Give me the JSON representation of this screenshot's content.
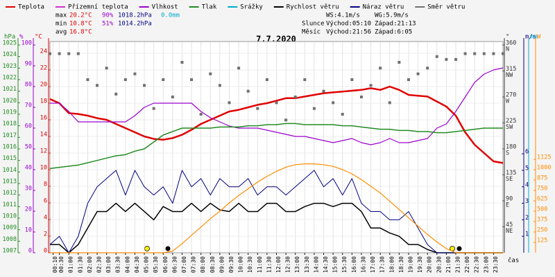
{
  "chart_data": {
    "type": "line",
    "title": "7.7.2020",
    "x_label": "čas",
    "x": [
      0,
      0.5,
      1,
      1.5,
      2,
      2.5,
      3,
      3.5,
      4,
      4.5,
      5,
      5.5,
      6,
      6.5,
      7,
      7.5,
      8,
      8.5,
      9,
      9.5,
      10,
      10.5,
      11,
      11.5,
      12,
      12.5,
      13,
      13.5,
      14,
      14.5,
      15,
      15.5,
      16,
      16.5,
      17,
      17.5,
      18,
      18.5,
      19,
      19.5,
      20,
      20.5,
      21,
      21.5,
      22,
      22.5,
      23,
      23.5,
      24
    ],
    "xlim": [
      0,
      24
    ],
    "xticks": [
      {
        "value": 0.1667,
        "label": "00:10"
      },
      {
        "value": 0.5,
        "label": "00:30"
      },
      {
        "value": 1,
        "label": "01:00"
      },
      {
        "value": 1.5,
        "label": "01:30"
      },
      {
        "value": 2,
        "label": "02:00"
      },
      {
        "value": 2.5,
        "label": "02:30"
      },
      {
        "value": 3,
        "label": "03:00"
      },
      {
        "value": 3.5,
        "label": "03:30"
      },
      {
        "value": 4,
        "label": "04:00"
      },
      {
        "value": 4.5,
        "label": "04:30"
      },
      {
        "value": 5,
        "label": "05:00"
      },
      {
        "value": 5.5,
        "label": "05:30"
      },
      {
        "value": 6,
        "label": "06:00"
      },
      {
        "value": 6.5,
        "label": "06:30"
      },
      {
        "value": 7,
        "label": "07:00"
      },
      {
        "value": 7.5,
        "label": "07:30"
      },
      {
        "value": 8,
        "label": "08:00"
      },
      {
        "value": 8.5,
        "label": "08:30"
      },
      {
        "value": 9,
        "label": "09:00"
      },
      {
        "value": 9.5,
        "label": "09:30"
      },
      {
        "value": 10,
        "label": "10:00"
      },
      {
        "value": 10.5,
        "label": "10:30"
      },
      {
        "value": 11,
        "label": "11:00"
      },
      {
        "value": 11.5,
        "label": "11:30"
      },
      {
        "value": 12,
        "label": "12:00"
      },
      {
        "value": 12.5,
        "label": "12:30"
      },
      {
        "value": 13,
        "label": "13:00"
      },
      {
        "value": 13.5,
        "label": "13:30"
      },
      {
        "value": 14,
        "label": "14:00"
      },
      {
        "value": 14.5,
        "label": "14:30"
      },
      {
        "value": 15,
        "label": "15:00"
      },
      {
        "value": 15.5,
        "label": "15:30"
      },
      {
        "value": 16,
        "label": "16:00"
      },
      {
        "value": 16.5,
        "label": "16:30"
      },
      {
        "value": 17,
        "label": "17:00"
      },
      {
        "value": 17.5,
        "label": "17:30"
      },
      {
        "value": 18,
        "label": "18:00"
      },
      {
        "value": 18.5,
        "label": "18:30"
      },
      {
        "value": 19,
        "label": "19:00"
      },
      {
        "value": 19.5,
        "label": "19:30"
      },
      {
        "value": 20,
        "label": "20:00"
      },
      {
        "value": 20.5,
        "label": "20:30"
      },
      {
        "value": 21,
        "label": "21:00"
      },
      {
        "value": 21.5,
        "label": "21:30"
      },
      {
        "value": 22,
        "label": "22:00"
      },
      {
        "value": 22.5,
        "label": "22:30"
      },
      {
        "value": 23,
        "label": "23:00"
      },
      {
        "value": 23.5,
        "label": "23:30"
      }
    ],
    "grid": true,
    "axes": {
      "press": {
        "label": "hPa",
        "color": "#228b22",
        "side": "left",
        "pos": 0,
        "lim": [
          1007,
          1025
        ],
        "ticks": [
          1007,
          1008,
          1009,
          1010,
          1011,
          1012,
          1013,
          1014,
          1015,
          1016,
          1017,
          1018,
          1019,
          1020,
          1021,
          1022,
          1023,
          1024,
          1025
        ]
      },
      "hum": {
        "label": "%",
        "color": "#9900cc",
        "side": "left",
        "pos": 1,
        "lim": [
          0,
          100
        ],
        "ticks": [
          0,
          10,
          20,
          30,
          40,
          50,
          60,
          70,
          80,
          90,
          100
        ]
      },
      "temp": {
        "label": "°C",
        "color": "#e00000",
        "side": "left",
        "pos": 2,
        "lim": [
          0,
          25
        ],
        "ticks": [
          0,
          2,
          4,
          6,
          8,
          10,
          12,
          14,
          16,
          18,
          20,
          22,
          24
        ]
      },
      "dir": {
        "label": "°",
        "color": "#333333",
        "side": "right",
        "pos": 0,
        "lim": [
          0,
          360
        ],
        "ticks": [
          45,
          90,
          135,
          180,
          225,
          270,
          315,
          360
        ],
        "compass": [
          "NE",
          "E",
          "SE",
          "S",
          "SW",
          "W",
          "NW",
          "N"
        ]
      },
      "wind": {
        "label": "m/s",
        "color": "#000080",
        "side": "right",
        "pos": 1,
        "lim": [
          0,
          12.6
        ],
        "ticks": [
          1,
          2,
          3,
          4,
          5,
          6
        ]
      },
      "rain": {
        "label": "mm",
        "color": "#00aacc",
        "side": "right",
        "pos": 2,
        "lim": [
          0,
          1
        ],
        "ticks": []
      },
      "solar": {
        "label": "W",
        "color": "#ff8c00",
        "side": "right",
        "pos": 3,
        "lim": [
          0,
          2500
        ],
        "ticks": [
          125,
          250,
          375,
          500,
          625,
          750,
          875,
          1000,
          1125
        ]
      }
    },
    "series": [
      {
        "name": "Teplota",
        "color": "#e00000",
        "axis": "temp",
        "width": 2.5,
        "values": [
          18.5,
          18,
          16.8,
          16.7,
          16.5,
          16.2,
          16,
          15.5,
          15,
          14.5,
          14,
          13.7,
          13.6,
          13.8,
          14.2,
          14.8,
          15.5,
          16,
          16.5,
          17,
          17.2,
          17.5,
          17.8,
          18,
          18.3,
          18.6,
          18.6,
          18.8,
          19,
          19.2,
          19.3,
          19.4,
          19.5,
          19.6,
          19.8,
          19.6,
          20,
          19.6,
          19,
          18.9,
          18.8,
          18.2,
          17.6,
          16.5,
          14.5,
          13,
          12,
          11,
          10.8
        ]
      },
      {
        "name": "Přízemní teplota",
        "color": "#cc33cc"
      },
      {
        "name": "Vlhkost",
        "color": "#9900cc",
        "axis": "hum",
        "width": 1.2,
        "values": [
          72,
          72,
          68,
          63,
          63,
          63,
          63,
          63,
          63,
          66,
          70,
          72,
          72,
          72,
          72,
          72,
          68,
          65,
          63,
          61,
          60,
          60,
          60,
          59,
          58,
          57,
          56,
          56,
          55,
          54,
          53,
          54,
          55,
          53,
          52,
          53,
          55,
          53,
          53,
          54,
          55,
          60,
          62,
          68,
          75,
          82,
          86,
          88,
          89
        ]
      },
      {
        "name": "Tlak",
        "color": "#228b22",
        "axis": "press",
        "width": 1.5,
        "values": [
          1014.3,
          1014.4,
          1014.5,
          1014.6,
          1014.8,
          1015,
          1015.2,
          1015.4,
          1015.5,
          1015.8,
          1016,
          1016.6,
          1017.2,
          1017.5,
          1017.8,
          1017.8,
          1017.8,
          1017.8,
          1017.9,
          1017.9,
          1017.9,
          1018,
          1018,
          1018.1,
          1018.1,
          1018.2,
          1018.2,
          1018.1,
          1018.1,
          1018.1,
          1018.1,
          1018,
          1018,
          1017.9,
          1017.8,
          1017.7,
          1017.7,
          1017.6,
          1017.6,
          1017.5,
          1017.5,
          1017.4,
          1017.4,
          1017.5,
          1017.6,
          1017.7,
          1017.8,
          1017.8,
          1017.8
        ]
      },
      {
        "name": "Srážky",
        "color": "#00aacc"
      },
      {
        "name": "Rychlost větru",
        "color": "#000000",
        "axis": "wind",
        "width": 1.5,
        "values": [
          0.5,
          0.5,
          0,
          0.5,
          1.5,
          2.5,
          2.5,
          3,
          2.5,
          3,
          2.5,
          2,
          2.8,
          2.5,
          2.5,
          3,
          2.5,
          3,
          2.6,
          2.5,
          3,
          2.5,
          2.5,
          3,
          3,
          2.5,
          2.5,
          2.8,
          3,
          3,
          2.8,
          3,
          3,
          2.5,
          1.5,
          1.5,
          1.2,
          1,
          0.5,
          0.5,
          0.2,
          0,
          0,
          0,
          0,
          0,
          0,
          0,
          0
        ]
      },
      {
        "name": "Náraz větru",
        "color": "#000080",
        "axis": "wind",
        "width": 1,
        "values": [
          0.5,
          1,
          0,
          1,
          3,
          4,
          4.5,
          5,
          3.5,
          5,
          4,
          3.5,
          4,
          3,
          5,
          4,
          4.5,
          3.5,
          4.5,
          4,
          4,
          4.5,
          3.5,
          4,
          4,
          3.5,
          4,
          4.5,
          5,
          4,
          4.5,
          3.5,
          4.5,
          3,
          2.5,
          2.5,
          2,
          2,
          2.5,
          1.5,
          0.5,
          0,
          0,
          0,
          0,
          0,
          0,
          0,
          0
        ]
      },
      {
        "name": "Směr větru",
        "color": "#707070",
        "axis": "dir",
        "marker": "square",
        "values": [
          345,
          345,
          345,
          345,
          300,
          290,
          320,
          275,
          300,
          310,
          290,
          250,
          300,
          270,
          330,
          300,
          240,
          310,
          290,
          260,
          320,
          280,
          250,
          300,
          260,
          230,
          270,
          300,
          250,
          280,
          260,
          240,
          300,
          270,
          290,
          320,
          260,
          330,
          300,
          310,
          320,
          340,
          335,
          335,
          345,
          345,
          345,
          345,
          345
        ]
      },
      {
        "color": "#ff8c00",
        "axis": "solar",
        "width": 1.2,
        "values": [
          0,
          0,
          0,
          0,
          0,
          0,
          0,
          0,
          0,
          0,
          0,
          0,
          0,
          20,
          110,
          210,
          310,
          410,
          500,
          600,
          690,
          770,
          850,
          920,
          980,
          1030,
          1060,
          1070,
          1070,
          1060,
          1040,
          1000,
          950,
          880,
          800,
          720,
          620,
          520,
          420,
          320,
          220,
          130,
          50,
          0,
          0,
          0,
          0,
          0,
          0
        ]
      }
    ],
    "stats": [
      {
        "label": "max",
        "temp": "20.2°C",
        "hum": "90%",
        "press": "1018.2hPa",
        "rain": "0.0mm"
      },
      {
        "label": "min",
        "temp": "10.8°C",
        "hum": "51%",
        "press": "1014.2hPa"
      },
      {
        "label": "avg",
        "temp": "16.8°C"
      }
    ],
    "info": {
      "ws": "WS:4.1m/s",
      "wg": "WG:5.9m/s",
      "sun": "Slunce",
      "sunrise": "Východ:05:10",
      "sunset": "Západ:21:13",
      "moon": "Měsíc",
      "moonrise": "Východ:21:56",
      "moonset": "Západ:6:05"
    }
  }
}
